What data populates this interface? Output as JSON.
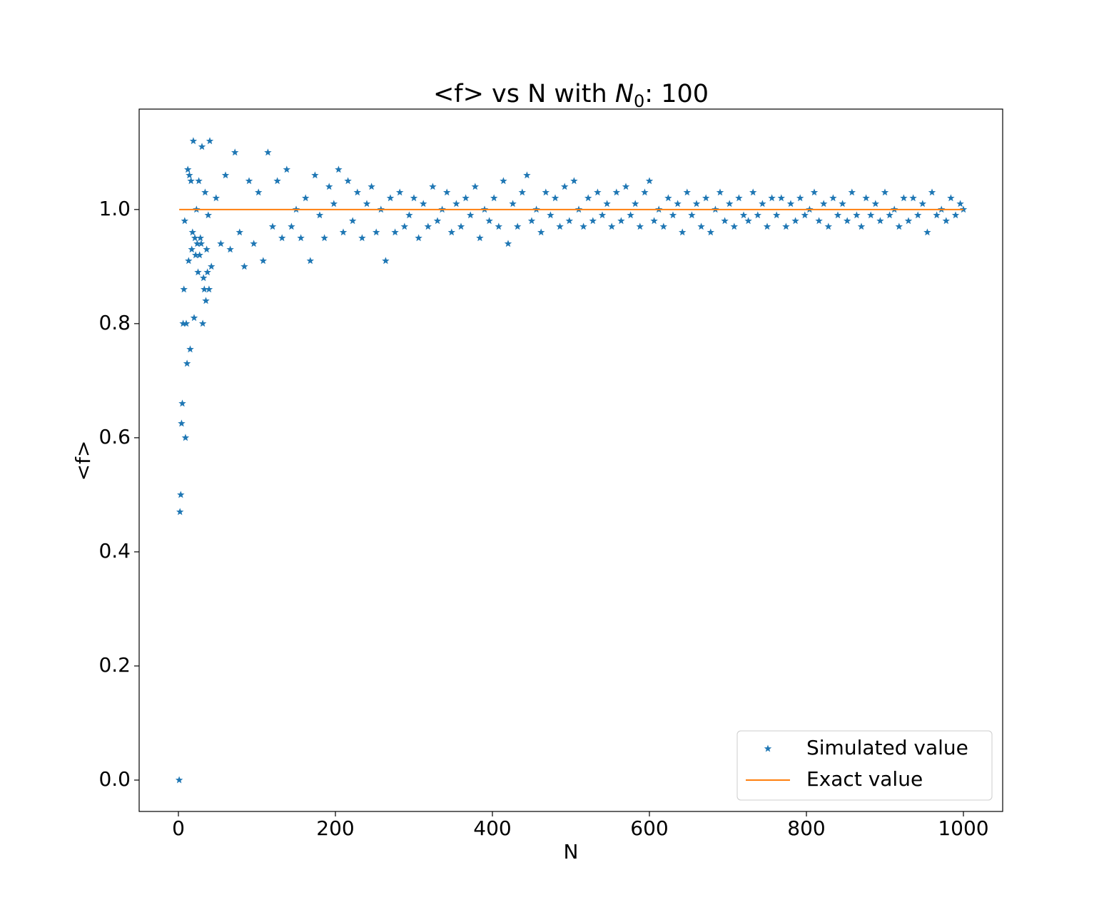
{
  "chart_data": {
    "type": "scatter",
    "title": "<f> vs N with ",
    "title_symbol": "N",
    "title_subscript": "0",
    "title_end": ": 100",
    "xlabel": "N",
    "ylabel": "<f>",
    "xlim": [
      -50,
      1050
    ],
    "ylim": [
      -0.055,
      1.176
    ],
    "xticks": [
      0,
      200,
      400,
      600,
      800,
      1000
    ],
    "yticks": [
      {
        "value": 0,
        "label": "0.0"
      },
      0.2,
      0.4,
      0.6,
      0.8,
      {
        "value": 1,
        "label": "1.0"
      }
    ],
    "grid": false,
    "legend": "lower right",
    "series": [
      {
        "name": "Simulated value",
        "type": "scatter",
        "marker": "star",
        "color": "#1f77b4",
        "x": [
          1,
          2,
          3,
          4,
          5,
          6,
          7,
          8,
          9,
          10,
          11,
          12,
          13,
          14,
          15,
          16,
          17,
          18,
          19,
          20,
          21,
          22,
          23,
          24,
          25,
          26,
          27,
          28,
          29,
          30,
          31,
          32,
          33,
          34,
          35,
          36,
          37,
          38,
          39,
          40,
          42,
          48,
          54,
          60,
          66,
          72,
          78,
          84,
          90,
          96,
          102,
          108,
          114,
          120,
          126,
          132,
          138,
          144,
          150,
          156,
          162,
          168,
          174,
          180,
          186,
          192,
          198,
          204,
          210,
          216,
          222,
          228,
          234,
          240,
          246,
          252,
          258,
          264,
          270,
          276,
          282,
          288,
          294,
          300,
          306,
          312,
          318,
          324,
          330,
          336,
          342,
          348,
          354,
          360,
          366,
          372,
          378,
          384,
          390,
          396,
          402,
          408,
          414,
          420,
          426,
          432,
          438,
          444,
          450,
          456,
          462,
          468,
          474,
          480,
          486,
          492,
          498,
          504,
          510,
          516,
          522,
          528,
          534,
          540,
          546,
          552,
          558,
          564,
          570,
          576,
          582,
          588,
          594,
          600,
          606,
          612,
          618,
          624,
          630,
          636,
          642,
          648,
          654,
          660,
          666,
          672,
          678,
          684,
          690,
          696,
          702,
          708,
          714,
          720,
          726,
          732,
          738,
          744,
          750,
          756,
          762,
          768,
          774,
          780,
          786,
          792,
          798,
          804,
          810,
          816,
          822,
          828,
          834,
          840,
          846,
          852,
          858,
          864,
          870,
          876,
          882,
          888,
          894,
          900,
          906,
          912,
          918,
          924,
          930,
          936,
          942,
          948,
          954,
          960,
          966,
          972,
          978,
          984,
          990,
          996,
          1000
        ],
        "values": [
          0.0,
          0.47,
          0.5,
          0.625,
          0.66,
          0.8,
          0.86,
          0.98,
          0.6,
          0.8,
          0.73,
          1.07,
          0.91,
          1.06,
          0.755,
          1.05,
          0.93,
          0.96,
          1.12,
          0.81,
          0.95,
          0.92,
          1.0,
          0.94,
          0.89,
          1.05,
          0.92,
          0.95,
          0.94,
          1.11,
          0.8,
          0.88,
          0.86,
          1.03,
          0.84,
          0.93,
          0.89,
          0.99,
          0.86,
          1.12,
          0.9,
          1.02,
          0.94,
          1.06,
          0.93,
          1.1,
          0.96,
          0.9,
          1.05,
          0.94,
          1.03,
          0.91,
          1.1,
          0.97,
          1.05,
          0.95,
          1.07,
          0.97,
          1.0,
          0.95,
          1.02,
          0.91,
          1.06,
          0.99,
          0.95,
          1.04,
          1.01,
          1.07,
          0.96,
          1.05,
          0.98,
          1.03,
          0.95,
          1.01,
          1.04,
          0.96,
          1.0,
          0.91,
          1.02,
          0.96,
          1.03,
          0.97,
          0.99,
          1.02,
          0.95,
          1.01,
          0.97,
          1.04,
          0.98,
          1.0,
          1.03,
          0.96,
          1.01,
          0.97,
          1.02,
          0.99,
          1.04,
          0.95,
          1.0,
          0.98,
          1.02,
          0.97,
          1.05,
          0.94,
          1.01,
          0.97,
          1.03,
          1.06,
          0.98,
          1.0,
          0.96,
          1.03,
          0.99,
          1.02,
          0.97,
          1.04,
          0.98,
          1.05,
          1.0,
          0.97,
          1.02,
          0.98,
          1.03,
          0.99,
          1.01,
          0.97,
          1.03,
          0.98,
          1.04,
          0.99,
          1.01,
          0.97,
          1.03,
          1.05,
          0.98,
          1.0,
          0.97,
          1.02,
          0.99,
          1.01,
          0.96,
          1.03,
          0.99,
          1.01,
          0.97,
          1.02,
          0.96,
          1.0,
          1.03,
          0.98,
          1.01,
          0.97,
          1.02,
          0.99,
          0.98,
          1.03,
          0.99,
          1.01,
          0.97,
          1.02,
          0.99,
          1.02,
          0.97,
          1.01,
          0.98,
          1.02,
          0.99,
          1.0,
          1.03,
          0.98,
          1.01,
          0.97,
          1.02,
          0.99,
          1.01,
          0.98,
          1.03,
          0.99,
          0.97,
          1.02,
          0.99,
          1.01,
          0.98,
          1.03,
          0.99,
          1.0,
          0.97,
          1.02,
          0.98,
          1.02,
          0.99,
          1.01,
          0.96,
          1.03,
          0.99,
          1.0,
          0.98,
          1.02,
          0.99,
          1.01,
          1.0
        ]
      },
      {
        "name": "Exact value",
        "type": "line",
        "color": "#ff7f0e",
        "x": [
          1,
          1000
        ],
        "values": [
          1,
          1
        ]
      }
    ]
  }
}
